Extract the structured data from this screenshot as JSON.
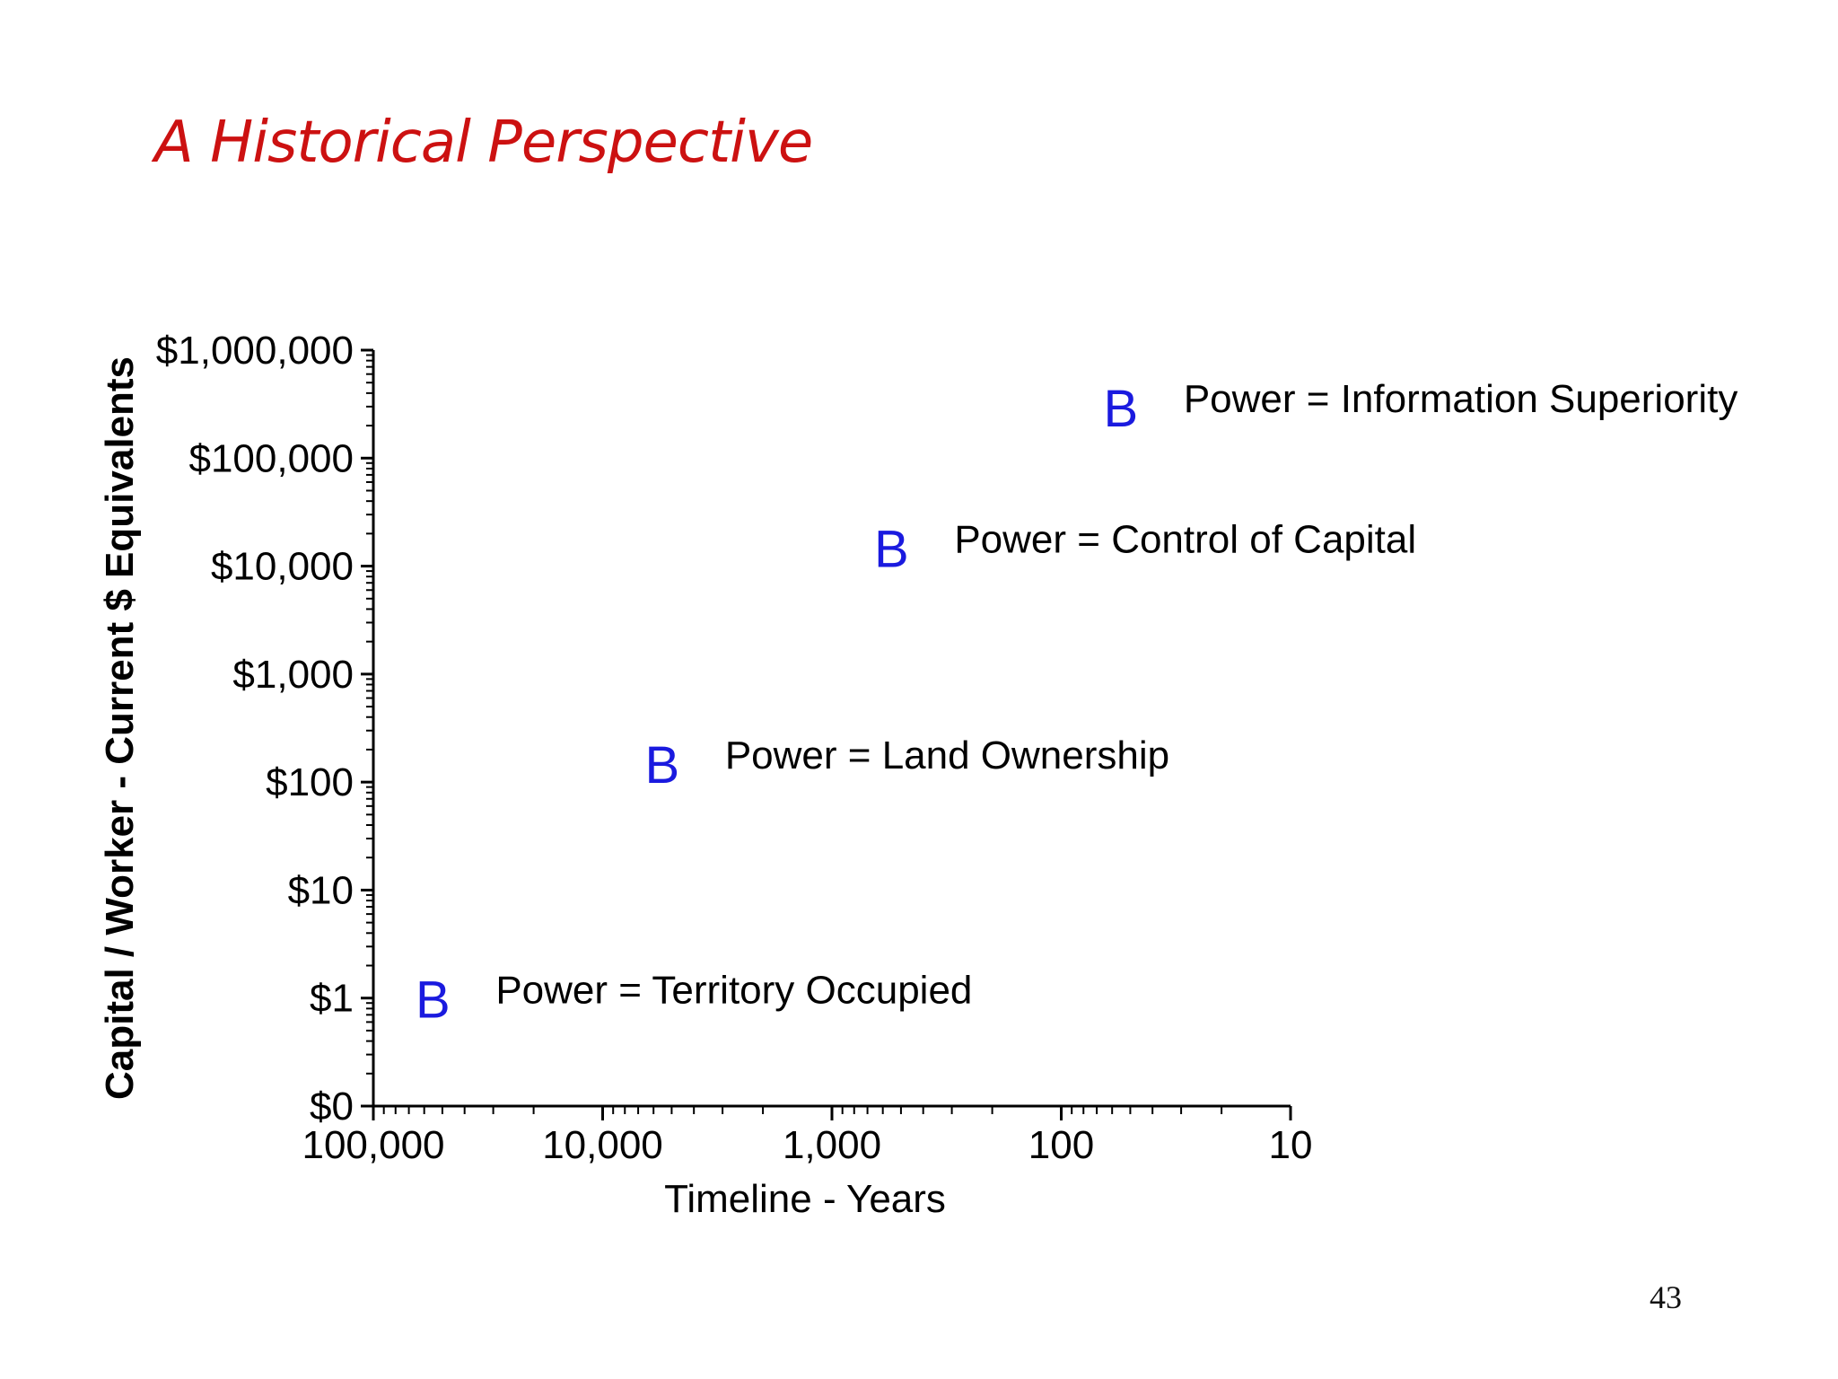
{
  "slide": {
    "title": "A Historical Perspective",
    "page_number": "43"
  },
  "colors": {
    "title": "#cc1111",
    "marker": "#1a1adf",
    "axis": "#000000"
  },
  "chart_data": {
    "type": "scatter",
    "title": "",
    "xlabel": "Timeline - Years",
    "ylabel": "Capital / Worker - Current $ Equivalents",
    "x_scale": "log-reversed",
    "y_scale": "log",
    "xlim": [
      100000,
      10
    ],
    "x_ticks": [
      {
        "value": 100000,
        "label": "100,000"
      },
      {
        "value": 10000,
        "label": "10,000"
      },
      {
        "value": 1000,
        "label": "1,000"
      },
      {
        "value": 100,
        "label": "100"
      },
      {
        "value": 10,
        "label": "10"
      }
    ],
    "y_ticks": [
      {
        "value": 0.1,
        "label": "$0"
      },
      {
        "value": 1,
        "label": "$1"
      },
      {
        "value": 10,
        "label": "$10"
      },
      {
        "value": 100,
        "label": "$100"
      },
      {
        "value": 1000,
        "label": "$1,000"
      },
      {
        "value": 10000,
        "label": "$10,000"
      },
      {
        "value": 100000,
        "label": "$100,000"
      },
      {
        "value": 1000000,
        "label": "$1,000,000"
      }
    ],
    "grid": false,
    "legend": "none",
    "points": [
      {
        "x": 55000,
        "y": 1,
        "marker": "B",
        "annotation": "Power  = Territory Occupied"
      },
      {
        "x": 5500,
        "y": 150,
        "marker": "B",
        "annotation": "Power  = Land Ownership"
      },
      {
        "x": 550,
        "y": 15000,
        "marker": "B",
        "annotation": "Power  =  Control of Capital"
      },
      {
        "x": 55,
        "y": 300000,
        "marker": "B",
        "annotation": "Power  = Information Superiority"
      }
    ]
  }
}
